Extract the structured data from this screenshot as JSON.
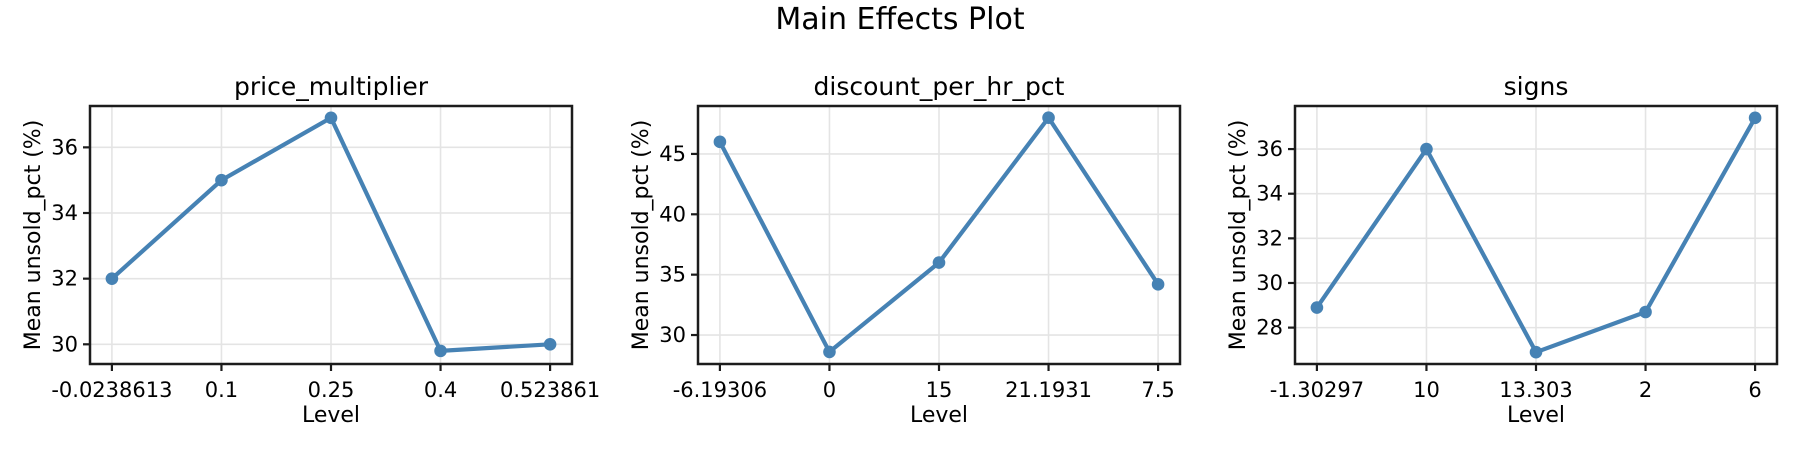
{
  "figure": {
    "suptitle": "Main Effects Plot"
  },
  "colors": {
    "background": "#ffffff",
    "line": "#4682b4",
    "grid": "#e4e4e4",
    "spine": "#1c1c1c",
    "text": "#000000"
  },
  "chart_data": [
    {
      "type": "line",
      "title": "price_multiplier",
      "xlabel": "Level",
      "ylabel": "Mean unsold_pct (%)",
      "categories": [
        "-0.0238613",
        "0.1",
        "0.25",
        "0.4",
        "0.523861"
      ],
      "values": [
        32.0,
        35.0,
        36.9,
        29.8,
        30.0
      ],
      "yticks": [
        30,
        32,
        34,
        36
      ],
      "ylim": [
        29.4,
        37.26
      ],
      "grid": true,
      "legend": "none",
      "marker": "circle",
      "line_color": "#4682b4"
    },
    {
      "type": "line",
      "title": "discount_per_hr_pct",
      "xlabel": "Level",
      "ylabel": "Mean unsold_pct (%)",
      "categories": [
        "-6.19306",
        "0",
        "15",
        "21.1931",
        "7.5"
      ],
      "values": [
        46.0,
        28.6,
        36.0,
        48.0,
        34.2
      ],
      "yticks": [
        30,
        35,
        40,
        45
      ],
      "ylim": [
        27.6,
        48.97
      ],
      "grid": true,
      "legend": "none",
      "marker": "circle",
      "line_color": "#4682b4"
    },
    {
      "type": "line",
      "title": "signs",
      "xlabel": "Level",
      "ylabel": "Mean unsold_pct (%)",
      "categories": [
        "-1.30297",
        "10",
        "13.303",
        "2",
        "6"
      ],
      "values": [
        28.9,
        36.0,
        26.9,
        28.7,
        37.4
      ],
      "yticks": [
        28,
        30,
        32,
        34,
        36
      ],
      "ylim": [
        26.37,
        37.93
      ],
      "grid": true,
      "legend": "none",
      "marker": "circle",
      "line_color": "#4682b4"
    }
  ]
}
